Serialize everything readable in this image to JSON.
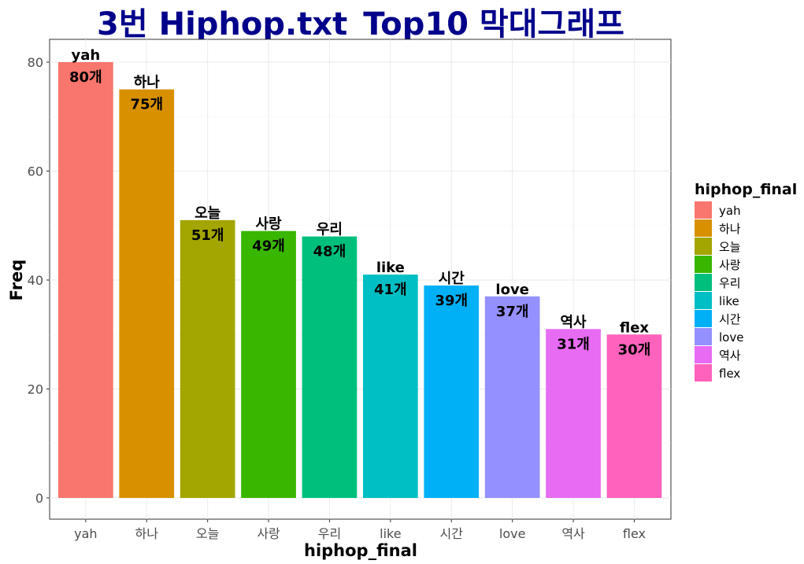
{
  "chart_data": {
    "type": "bar",
    "title": "3번 Hiphop.txt_Top10 막대그래프",
    "xlabel": "hiphop_final",
    "ylabel": "Freq",
    "ylim": [
      0,
      80
    ],
    "yticks": [
      0,
      20,
      40,
      60,
      80
    ],
    "grid": true,
    "legend_position": "right",
    "legend_title": "hiphop_final",
    "categories": [
      "yah",
      "하나",
      "오늘",
      "사랑",
      "우리",
      "like",
      "시간",
      "love",
      "역사",
      "flex"
    ],
    "values": [
      80,
      75,
      51,
      49,
      48,
      41,
      39,
      37,
      31,
      30
    ],
    "value_labels": [
      "80개",
      "75개",
      "51개",
      "49개",
      "48개",
      "41개",
      "39개",
      "37개",
      "31개",
      "30개"
    ],
    "colors": [
      "#F8766D",
      "#D89000",
      "#A3A500",
      "#39B600",
      "#00BF7D",
      "#00BFC4",
      "#00B0F6",
      "#9590FF",
      "#E76BF3",
      "#FF62BC"
    ]
  }
}
